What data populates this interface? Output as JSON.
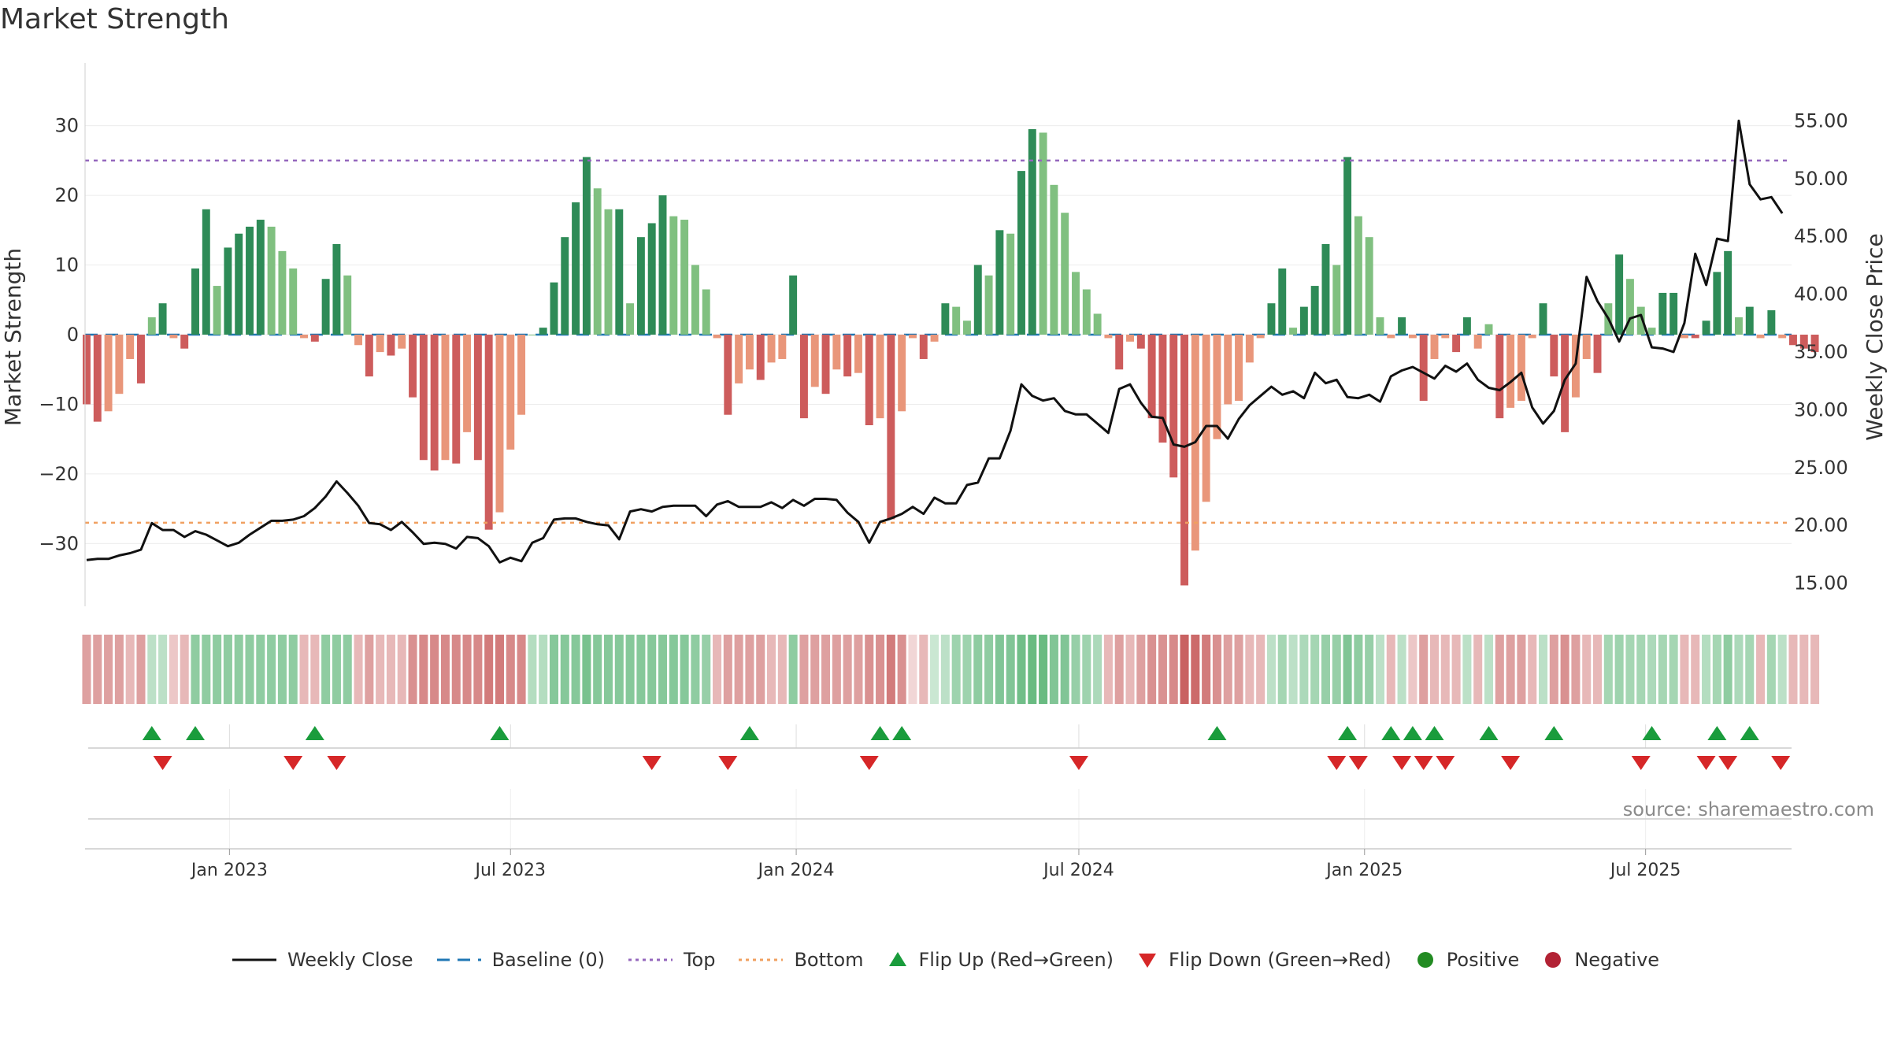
{
  "title": "Market Strength",
  "source": "source: sharemaestro.com",
  "colors": {
    "line": "#111111",
    "baseline": "#1f77b4",
    "top": "#9467bd",
    "bottom": "#f0a060",
    "pos_strong": "#2e8b57",
    "pos_light": "#80c080",
    "neg_strong": "#cd5c5c",
    "neg_light": "#e9967a",
    "flip_up": "#1a9c3c",
    "flip_down": "#d62728",
    "positive": "#228b22",
    "negative": "#b22234"
  },
  "legend": [
    {
      "label": "Weekly Close",
      "icon": "line-solid",
      "color": "#111111"
    },
    {
      "label": "Baseline (0)",
      "icon": "line-dashed",
      "color": "#1f77b4"
    },
    {
      "label": "Top",
      "icon": "line-dotted",
      "color": "#9467bd"
    },
    {
      "label": "Bottom",
      "icon": "line-dotted",
      "color": "#f0a060"
    },
    {
      "label": "Flip Up (Red→Green)",
      "icon": "triangle-up",
      "color": "#1a9c3c"
    },
    {
      "label": "Flip Down (Green→Red)",
      "icon": "triangle-down",
      "color": "#d62728"
    },
    {
      "label": "Positive",
      "icon": "circle",
      "color": "#228b22"
    },
    {
      "label": "Negative",
      "icon": "circle",
      "color": "#b22234"
    }
  ],
  "chart_data": {
    "type": "bar",
    "title": "Market Strength",
    "ylabel": "Market Strength",
    "y2label": "Weekly Close Price",
    "ylim": [
      -39,
      39
    ],
    "y2lim": [
      13,
      60
    ],
    "yticks": [
      -30,
      -20,
      -10,
      0,
      10,
      20,
      30
    ],
    "ytick_labels": [
      "−30",
      "−20",
      "−10",
      "0",
      "10",
      "20",
      "30"
    ],
    "y2ticks": [
      15,
      20,
      25,
      30,
      35,
      40,
      45,
      50,
      55
    ],
    "y2tick_labels": [
      "15.00",
      "20.00",
      "25.00",
      "30.00",
      "35.00",
      "40.00",
      "45.00",
      "50.00",
      "55.00"
    ],
    "top_level": 25,
    "bottom_level": -27,
    "xrange": [
      "2022-09-30",
      "2025-10-03"
    ],
    "xticks": [
      {
        "date": "2023-01-01",
        "label": "Jan 2023"
      },
      {
        "date": "2023-07-01",
        "label": "Jul 2023"
      },
      {
        "date": "2024-01-01",
        "label": "Jan 2024"
      },
      {
        "date": "2024-07-01",
        "label": "Jul 2024"
      },
      {
        "date": "2025-01-01",
        "label": "Jan 2025"
      },
      {
        "date": "2025-07-01",
        "label": "Jul 2025"
      }
    ],
    "start_week": "2022-10-01",
    "weekly_strength": [
      -10,
      -12.5,
      -11,
      -8.5,
      -3.5,
      -7,
      2.5,
      4.5,
      -0.5,
      -2,
      9.5,
      18,
      7,
      12.5,
      14.5,
      15.5,
      16.5,
      15.5,
      12,
      9.5,
      -0.5,
      -1,
      8,
      13,
      8.5,
      -1.5,
      -6,
      -2.5,
      -3,
      -2,
      -9,
      -18,
      -19.5,
      -18,
      -18.5,
      -14,
      -18,
      -28,
      -25.5,
      -16.5,
      -11.5,
      0,
      1,
      7.5,
      14,
      19,
      25.5,
      21,
      18,
      18,
      4.5,
      14,
      16,
      20,
      17,
      16.5,
      10,
      6.5,
      -0.5,
      -11.5,
      -7,
      -5,
      -6.5,
      -4,
      -3.5,
      8.5,
      -12,
      -7.5,
      -8.5,
      -5,
      -6,
      -5.5,
      -13,
      -12,
      -26.5,
      -11,
      -0.5,
      -3.5,
      -1,
      4.5,
      4,
      2,
      10,
      8.5,
      15,
      14.5,
      23.5,
      29.5,
      29,
      21.5,
      17.5,
      9,
      6.5,
      3,
      -0.5,
      -5,
      -1,
      -2,
      -12,
      -15.5,
      -20.5,
      -36,
      -31,
      -24,
      -15,
      -10,
      -9.5,
      -4,
      -0.5,
      4.5,
      9.5,
      1,
      4,
      7,
      13,
      10,
      25.5,
      17,
      14,
      2.5,
      -0.5,
      2.5,
      -0.5,
      -9.5,
      -3.5,
      -0.5,
      -2.5,
      2.5,
      -2,
      1.5,
      -12,
      -10.5,
      -9.5,
      -0.5,
      4.5,
      -6,
      -14,
      -9,
      -3.5,
      -5.5,
      4.5,
      11.5,
      8,
      4,
      1,
      6,
      6,
      -0.5,
      -0.5,
      2,
      9,
      12,
      2.5,
      4,
      -0.5,
      3.5,
      -0.5,
      -1.5,
      -2,
      -2.5
    ],
    "weekly_close": [
      17,
      17.1,
      17.1,
      17.4,
      17.6,
      17.9,
      20.2,
      19.6,
      19.6,
      19,
      19.5,
      19.2,
      18.7,
      18.2,
      18.5,
      19.2,
      19.8,
      20.4,
      20.4,
      20.5,
      20.8,
      21.5,
      22.5,
      23.8,
      22.8,
      21.7,
      20.2,
      20.1,
      19.6,
      20.3,
      19.4,
      18.4,
      18.5,
      18.4,
      18,
      19,
      18.9,
      18.2,
      16.8,
      17.2,
      16.9,
      18.5,
      18.9,
      20.5,
      20.6,
      20.6,
      20.3,
      20.1,
      20,
      18.8,
      21.2,
      21.4,
      21.2,
      21.6,
      21.7,
      21.7,
      21.7,
      20.8,
      21.8,
      22.1,
      21.6,
      21.6,
      21.6,
      22,
      21.5,
      22.2,
      21.7,
      22.3,
      22.3,
      22.2,
      21.1,
      20.3,
      18.5,
      20.3,
      20.6,
      21,
      21.6,
      21,
      22.4,
      21.9,
      21.9,
      23.5,
      23.7,
      25.8,
      25.8,
      28.2,
      32.2,
      31.2,
      30.8,
      31,
      29.9,
      29.6,
      29.6,
      28.8,
      28,
      31.8,
      32.2,
      30.6,
      29.4,
      29.3,
      27,
      26.8,
      27.2,
      28.6,
      28.6,
      27.5,
      29.2,
      30.4,
      31.2,
      32,
      31.3,
      31.6,
      31,
      33.2,
      32.3,
      32.6,
      31.1,
      31,
      31.3,
      30.7,
      32.9,
      33.4,
      33.7,
      33.2,
      32.7,
      33.8,
      33.3,
      34,
      32.6,
      31.9,
      31.7,
      32.4,
      33.2,
      30.2,
      28.8,
      29.9,
      32.6,
      34,
      41.5,
      39.4,
      37.9,
      35.9,
      37.9,
      38.2,
      35.4,
      35.3,
      35,
      37.5,
      43.5,
      40.8,
      44.8,
      44.6,
      55,
      49.5,
      48.2,
      48.4,
      47
    ],
    "weekly_shading": [
      -0.45,
      -0.45,
      -0.45,
      -0.45,
      -0.3,
      -0.45,
      0.3,
      0.3,
      -0.2,
      -0.3,
      0.6,
      0.6,
      0.6,
      0.6,
      0.6,
      0.6,
      0.6,
      0.6,
      0.6,
      0.6,
      -0.3,
      -0.3,
      0.6,
      0.6,
      0.6,
      -0.3,
      -0.45,
      -0.3,
      -0.3,
      -0.3,
      -0.55,
      -0.6,
      -0.6,
      -0.6,
      -0.6,
      -0.6,
      -0.6,
      -0.7,
      -0.7,
      -0.6,
      -0.6,
      0.35,
      0.35,
      0.65,
      0.65,
      0.65,
      0.75,
      0.65,
      0.65,
      0.65,
      0.65,
      0.65,
      0.65,
      0.65,
      0.65,
      0.65,
      0.6,
      0.55,
      -0.3,
      -0.45,
      -0.45,
      -0.45,
      -0.45,
      -0.3,
      -0.3,
      0.6,
      -0.45,
      -0.45,
      -0.45,
      -0.45,
      -0.45,
      -0.45,
      -0.55,
      -0.55,
      -0.7,
      -0.55,
      -0.1,
      -0.3,
      0.2,
      0.3,
      0.5,
      0.5,
      0.6,
      0.6,
      0.7,
      0.7,
      0.8,
      0.85,
      0.85,
      0.7,
      0.7,
      0.55,
      0.5,
      0.4,
      -0.3,
      -0.45,
      -0.3,
      -0.45,
      -0.55,
      -0.55,
      -0.6,
      -0.85,
      -0.8,
      -0.7,
      -0.55,
      -0.45,
      -0.45,
      -0.3,
      -0.3,
      0.3,
      0.45,
      0.3,
      0.4,
      0.45,
      0.55,
      0.55,
      0.7,
      0.6,
      0.55,
      0.3,
      -0.3,
      0.3,
      -0.2,
      -0.45,
      -0.3,
      -0.3,
      -0.3,
      0.3,
      -0.3,
      0.3,
      -0.45,
      -0.45,
      -0.45,
      -0.3,
      0.3,
      -0.45,
      -0.55,
      -0.45,
      -0.3,
      -0.3,
      0.45,
      0.5,
      0.45,
      0.45,
      0.4,
      0.45,
      0.45,
      -0.3,
      -0.3,
      0.35,
      0.45,
      0.6,
      0.4,
      0.45,
      -0.3,
      0.45,
      0.3,
      -0.3,
      -0.3,
      -0.3
    ],
    "flip_up_dates": [
      "2022-11-12",
      "2022-12-10",
      "2023-02-25",
      "2023-06-24",
      "2023-12-02",
      "2024-02-24",
      "2024-03-09",
      "2024-09-28",
      "2024-12-21",
      "2025-01-18",
      "2025-02-01",
      "2025-02-15",
      "2025-03-22",
      "2025-05-03",
      "2025-07-05",
      "2025-08-16",
      "2025-09-06"
    ],
    "flip_down_dates": [
      "2022-11-19",
      "2023-02-11",
      "2023-03-11",
      "2023-09-30",
      "2023-11-18",
      "2024-02-17",
      "2024-07-01",
      "2024-12-14",
      "2024-12-28",
      "2025-01-25",
      "2025-02-08",
      "2025-02-22",
      "2025-04-05",
      "2025-06-28",
      "2025-08-09",
      "2025-08-23",
      "2025-09-26"
    ],
    "legend": [
      "Weekly Close",
      "Baseline (0)",
      "Top",
      "Bottom",
      "Flip Up (Red→Green)",
      "Flip Down (Green→Red)",
      "Positive",
      "Negative"
    ]
  }
}
